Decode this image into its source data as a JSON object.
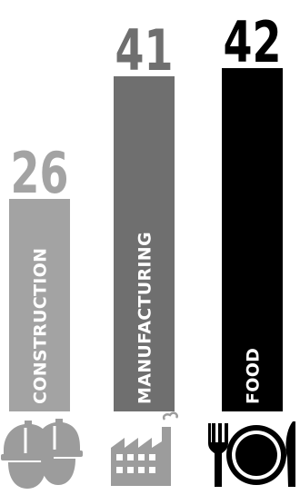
{
  "chart_data": {
    "type": "bar",
    "categories": [
      "CONSTRUCTION",
      "MANUFACTURING",
      "FOOD"
    ],
    "values": [
      26,
      41,
      42
    ],
    "ylim": [
      0,
      42
    ],
    "grid": false,
    "colors": [
      "#a3a3a3",
      "#6f6f6f",
      "#000000"
    ],
    "icons": [
      "hard-hats-icon",
      "factory-icon",
      "plate-fork-knife-icon"
    ]
  }
}
